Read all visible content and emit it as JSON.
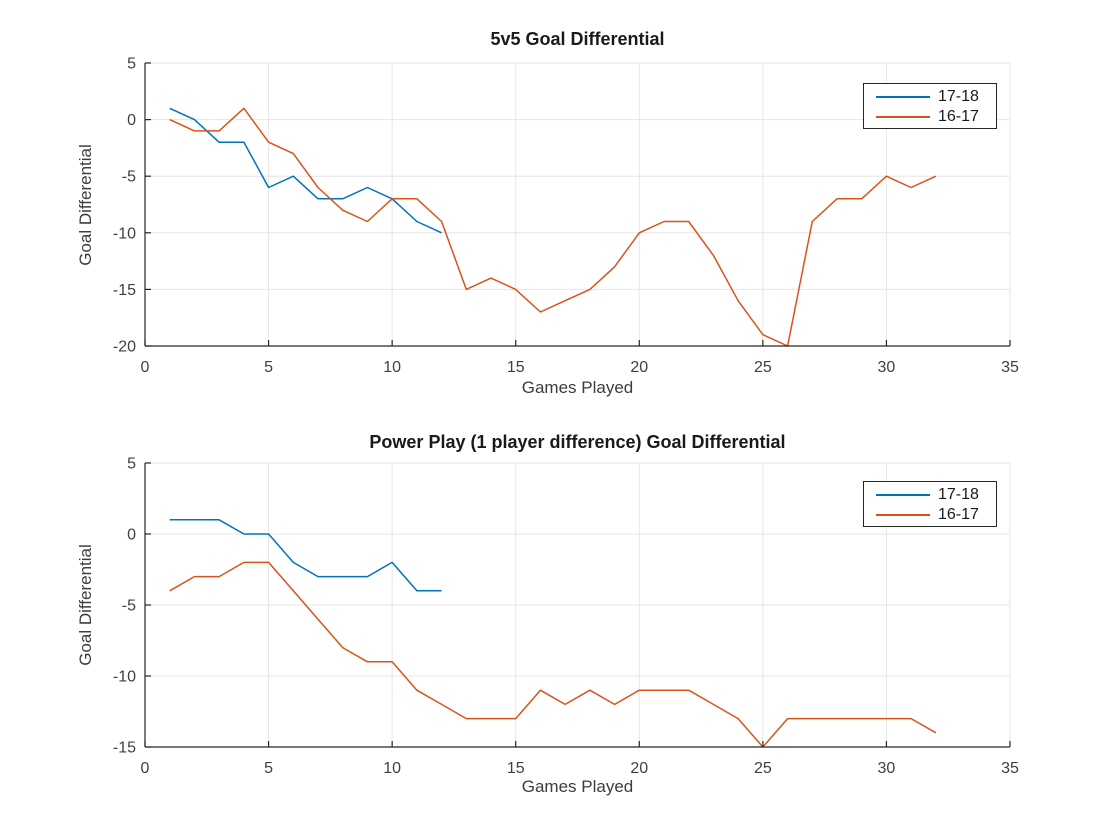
{
  "figure": {
    "background": "#ffffff",
    "axis_color": "#262626",
    "grid_color": "#e6e6e6",
    "tick_text_color": "#404040"
  },
  "chart_data": [
    {
      "type": "line",
      "title": "5v5 Goal Differential",
      "xlabel": "Games Played",
      "ylabel": "Goal Differential",
      "xlim": [
        0,
        35
      ],
      "ylim": [
        -20,
        5
      ],
      "xticks": [
        0,
        5,
        10,
        15,
        20,
        25,
        30,
        35
      ],
      "yticks": [
        5,
        0,
        -5,
        -10,
        -15,
        -20
      ],
      "grid": true,
      "legend_position": "top-right",
      "series": [
        {
          "name": "17-18",
          "color": "#0072BD",
          "x": [
            1,
            2,
            3,
            4,
            5,
            6,
            7,
            8,
            9,
            10,
            11,
            12
          ],
          "y": [
            1,
            0,
            -2,
            -2,
            -6,
            -5,
            -7,
            -7,
            -6,
            -7,
            -9,
            -10
          ]
        },
        {
          "name": "16-17",
          "color": "#D95319",
          "x": [
            1,
            2,
            3,
            4,
            5,
            6,
            7,
            8,
            9,
            10,
            11,
            12,
            13,
            14,
            15,
            16,
            17,
            18,
            19,
            20,
            21,
            22,
            23,
            24,
            25,
            26,
            27,
            28,
            29,
            30,
            31,
            32
          ],
          "y": [
            0,
            -1,
            -1,
            1,
            -2,
            -3,
            -6,
            -8,
            -9,
            -7,
            -7,
            -9,
            -15,
            -14,
            -15,
            -17,
            -16,
            -15,
            -13,
            -10,
            -9,
            -9,
            -12,
            -16,
            -19,
            -20,
            -9,
            -7,
            -7,
            -5,
            -6,
            -5
          ]
        }
      ]
    },
    {
      "type": "line",
      "title": "Power Play (1 player difference) Goal Differential",
      "xlabel": "Games Played",
      "ylabel": "Goal Differential",
      "xlim": [
        0,
        35
      ],
      "ylim": [
        -15,
        5
      ],
      "xticks": [
        0,
        5,
        10,
        15,
        20,
        25,
        30,
        35
      ],
      "yticks": [
        5,
        0,
        -5,
        -10,
        -15
      ],
      "grid": true,
      "legend_position": "top-right",
      "series": [
        {
          "name": "17-18",
          "color": "#0072BD",
          "x": [
            1,
            2,
            3,
            4,
            5,
            6,
            7,
            8,
            9,
            10,
            11,
            12
          ],
          "y": [
            1,
            1,
            1,
            0,
            0,
            -2,
            -3,
            -3,
            -3,
            -2,
            -4,
            -4
          ]
        },
        {
          "name": "16-17",
          "color": "#D95319",
          "x": [
            1,
            2,
            3,
            4,
            5,
            6,
            7,
            8,
            9,
            10,
            11,
            12,
            13,
            14,
            15,
            16,
            17,
            18,
            19,
            20,
            21,
            22,
            23,
            24,
            25,
            26,
            27,
            28,
            29,
            30,
            31,
            32
          ],
          "y": [
            -4,
            -3,
            -3,
            -2,
            -2,
            -4,
            -6,
            -8,
            -9,
            -9,
            -11,
            -12,
            -13,
            -13,
            -13,
            -11,
            -12,
            -11,
            -12,
            -11,
            -11,
            -11,
            -12,
            -13,
            -15,
            -13,
            -13,
            -13,
            -13,
            -13,
            -13,
            -14
          ]
        }
      ]
    }
  ]
}
